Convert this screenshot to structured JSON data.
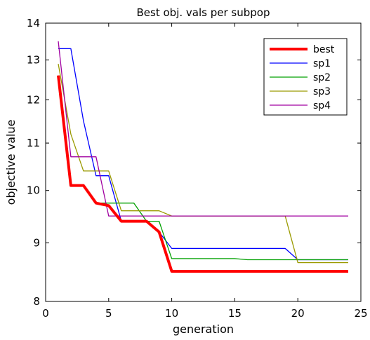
{
  "chart_data": {
    "type": "line",
    "title": "Best obj. vals per subpop",
    "xlabel": "generation",
    "ylabel": "objective value",
    "xlim": [
      0,
      25
    ],
    "ylim": [
      8,
      14
    ],
    "yscale": "log",
    "xticks": [
      "0",
      "5",
      "10",
      "15",
      "20",
      "25"
    ],
    "yticks": [
      "8",
      "9",
      "10",
      "11",
      "12",
      "13",
      "14"
    ],
    "grid": false,
    "legend_position": "top-right",
    "series": [
      {
        "name": "best",
        "color": "#ff0000",
        "x": [
          1,
          2,
          3,
          4,
          5,
          6,
          7,
          8,
          9,
          10,
          11,
          12,
          13,
          14,
          15,
          16,
          17,
          18,
          19,
          20,
          21,
          22,
          23,
          24
        ],
        "y": [
          12.6,
          10.1,
          10.1,
          9.75,
          9.7,
          9.4,
          9.4,
          9.4,
          9.2,
          8.5,
          8.5,
          8.5,
          8.5,
          8.5,
          8.5,
          8.5,
          8.5,
          8.5,
          8.5,
          8.5,
          8.5,
          8.5,
          8.5,
          8.5
        ]
      },
      {
        "name": "sp1",
        "color": "#0000ff",
        "x": [
          1,
          2,
          3,
          4,
          5,
          6,
          7,
          8,
          9,
          10,
          11,
          12,
          13,
          14,
          15,
          16,
          17,
          18,
          19,
          20,
          21,
          22,
          23,
          24
        ],
        "y": [
          13.3,
          13.3,
          11.5,
          10.3,
          10.3,
          9.4,
          9.4,
          9.4,
          9.2,
          8.9,
          8.9,
          8.9,
          8.9,
          8.9,
          8.9,
          8.9,
          8.9,
          8.9,
          8.9,
          8.7,
          8.7,
          8.7,
          8.7,
          8.7
        ]
      },
      {
        "name": "sp2",
        "color": "#00a000",
        "x": [
          1,
          2,
          3,
          4,
          5,
          6,
          7,
          8,
          9,
          10,
          11,
          12,
          13,
          14,
          15,
          16,
          17,
          18,
          19,
          20,
          21,
          22,
          23,
          24
        ],
        "y": [
          12.6,
          10.1,
          10.1,
          9.75,
          9.75,
          9.75,
          9.75,
          9.4,
          9.4,
          8.72,
          8.72,
          8.72,
          8.72,
          8.72,
          8.72,
          8.7,
          8.7,
          8.7,
          8.7,
          8.7,
          8.7,
          8.7,
          8.7,
          8.7
        ]
      },
      {
        "name": "sp3",
        "color": "#9a9a00",
        "x": [
          1,
          2,
          3,
          4,
          5,
          6,
          7,
          8,
          9,
          10,
          11,
          12,
          13,
          14,
          15,
          16,
          17,
          18,
          19,
          20,
          21,
          22,
          23,
          24
        ],
        "y": [
          12.9,
          11.2,
          10.4,
          10.4,
          10.4,
          9.6,
          9.6,
          9.6,
          9.6,
          9.5,
          9.5,
          9.5,
          9.5,
          9.5,
          9.5,
          9.5,
          9.5,
          9.5,
          9.5,
          8.65,
          8.65,
          8.65,
          8.65,
          8.65
        ]
      },
      {
        "name": "sp4",
        "color": "#a000a0",
        "x": [
          1,
          2,
          3,
          4,
          5,
          6,
          7,
          8,
          9,
          10,
          11,
          12,
          13,
          14,
          15,
          16,
          17,
          18,
          19,
          20,
          21,
          22,
          23,
          24
        ],
        "y": [
          13.5,
          10.7,
          10.7,
          10.7,
          9.5,
          9.5,
          9.5,
          9.5,
          9.5,
          9.5,
          9.5,
          9.5,
          9.5,
          9.5,
          9.5,
          9.5,
          9.5,
          9.5,
          9.5,
          9.5,
          9.5,
          9.5,
          9.5,
          9.5
        ]
      }
    ]
  }
}
